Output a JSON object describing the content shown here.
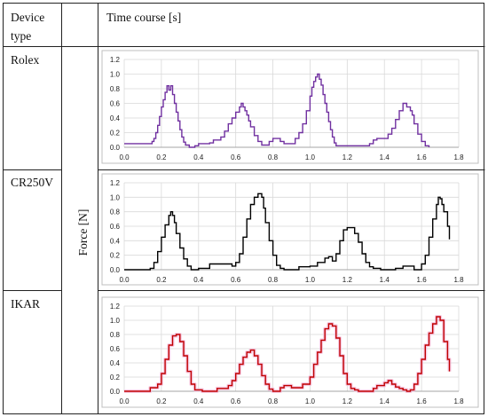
{
  "table": {
    "header_device": "Device type",
    "header_time": "Time course [s]",
    "y_axis_label": "Force [N]"
  },
  "chart_data": [
    {
      "type": "line",
      "device": "Rolex",
      "color": "#7030a0",
      "xlim": [
        0.0,
        1.8
      ],
      "ylim": [
        0.0,
        1.2
      ],
      "xticks": [
        "0.0",
        "0.2",
        "0.4",
        "0.6",
        "0.8",
        "1.0",
        "1.2",
        "1.4",
        "1.6",
        "1.8"
      ],
      "yticks": [
        "0.0",
        "0.2",
        "0.4",
        "0.6",
        "0.8",
        "1.0",
        "1.2"
      ],
      "grid": true,
      "x": [
        0.0,
        0.14,
        0.15,
        0.16,
        0.17,
        0.18,
        0.19,
        0.2,
        0.21,
        0.22,
        0.23,
        0.24,
        0.25,
        0.26,
        0.27,
        0.28,
        0.29,
        0.3,
        0.31,
        0.32,
        0.33,
        0.35,
        0.36,
        0.38,
        0.4,
        0.42,
        0.46,
        0.48,
        0.5,
        0.52,
        0.54,
        0.56,
        0.58,
        0.6,
        0.62,
        0.63,
        0.64,
        0.65,
        0.66,
        0.67,
        0.68,
        0.7,
        0.72,
        0.74,
        0.76,
        0.78,
        0.8,
        0.82,
        0.84,
        0.86,
        0.88,
        0.92,
        0.94,
        0.96,
        0.98,
        1.0,
        1.01,
        1.02,
        1.03,
        1.04,
        1.05,
        1.06,
        1.07,
        1.08,
        1.09,
        1.1,
        1.11,
        1.12,
        1.13,
        1.14,
        1.16,
        1.18,
        1.3,
        1.32,
        1.34,
        1.36,
        1.38,
        1.4,
        1.42,
        1.44,
        1.46,
        1.48,
        1.5,
        1.51,
        1.52,
        1.53,
        1.54,
        1.55,
        1.56,
        1.58,
        1.6,
        1.62,
        1.64
      ],
      "y": [
        0.05,
        0.05,
        0.08,
        0.12,
        0.2,
        0.3,
        0.42,
        0.55,
        0.65,
        0.75,
        0.84,
        0.78,
        0.84,
        0.72,
        0.6,
        0.48,
        0.36,
        0.24,
        0.14,
        0.07,
        0.03,
        0.0,
        0.0,
        0.02,
        0.05,
        0.05,
        0.06,
        0.1,
        0.1,
        0.14,
        0.22,
        0.32,
        0.4,
        0.48,
        0.55,
        0.6,
        0.55,
        0.5,
        0.44,
        0.36,
        0.28,
        0.16,
        0.08,
        0.03,
        0.03,
        0.08,
        0.12,
        0.12,
        0.08,
        0.05,
        0.05,
        0.12,
        0.2,
        0.32,
        0.5,
        0.7,
        0.82,
        0.9,
        0.96,
        1.0,
        0.93,
        0.85,
        0.72,
        0.6,
        0.48,
        0.35,
        0.24,
        0.14,
        0.06,
        0.02,
        0.02,
        0.02,
        0.02,
        0.05,
        0.1,
        0.12,
        0.12,
        0.12,
        0.18,
        0.26,
        0.38,
        0.5,
        0.6,
        0.6,
        0.55,
        0.55,
        0.5,
        0.44,
        0.32,
        0.18,
        0.08,
        0.02,
        0.0
      ]
    },
    {
      "type": "line",
      "device": "CR250V",
      "color": "#000000",
      "xlim": [
        0.0,
        1.8
      ],
      "ylim": [
        0.0,
        1.2
      ],
      "xticks": [
        "0.0",
        "0.2",
        "0.4",
        "0.6",
        "0.8",
        "1.0",
        "1.2",
        "1.4",
        "1.6",
        "1.8"
      ],
      "yticks": [
        "0.0",
        "0.2",
        "0.4",
        "0.6",
        "0.8",
        "1.0",
        "1.2"
      ],
      "grid": true,
      "x": [
        0.0,
        0.12,
        0.14,
        0.16,
        0.18,
        0.2,
        0.22,
        0.24,
        0.25,
        0.26,
        0.27,
        0.28,
        0.3,
        0.32,
        0.34,
        0.36,
        0.38,
        0.4,
        0.44,
        0.46,
        0.5,
        0.54,
        0.58,
        0.6,
        0.62,
        0.64,
        0.66,
        0.68,
        0.7,
        0.72,
        0.73,
        0.74,
        0.75,
        0.76,
        0.78,
        0.8,
        0.82,
        0.84,
        0.86,
        0.9,
        0.94,
        1.0,
        1.04,
        1.08,
        1.1,
        1.12,
        1.14,
        1.16,
        1.18,
        1.2,
        1.22,
        1.24,
        1.26,
        1.28,
        1.3,
        1.32,
        1.34,
        1.38,
        1.42,
        1.46,
        1.5,
        1.56,
        1.6,
        1.62,
        1.64,
        1.66,
        1.68,
        1.69,
        1.7,
        1.71,
        1.72,
        1.74,
        1.75
      ],
      "y": [
        0.0,
        0.0,
        0.02,
        0.1,
        0.25,
        0.45,
        0.62,
        0.75,
        0.8,
        0.75,
        0.65,
        0.5,
        0.3,
        0.15,
        0.05,
        0.0,
        0.0,
        0.02,
        0.02,
        0.08,
        0.08,
        0.08,
        0.05,
        0.1,
        0.22,
        0.45,
        0.7,
        0.9,
        1.0,
        1.05,
        1.05,
        1.0,
        0.85,
        0.65,
        0.4,
        0.2,
        0.06,
        0.02,
        0.0,
        0.0,
        0.04,
        0.05,
        0.1,
        0.16,
        0.18,
        0.12,
        0.22,
        0.4,
        0.55,
        0.58,
        0.58,
        0.5,
        0.38,
        0.22,
        0.1,
        0.04,
        0.02,
        0.0,
        0.0,
        0.02,
        0.05,
        0.0,
        0.08,
        0.2,
        0.45,
        0.7,
        0.9,
        1.0,
        0.98,
        0.9,
        0.8,
        0.6,
        0.42
      ]
    },
    {
      "type": "line",
      "device": "IKAR",
      "color": "#c00000",
      "xlim": [
        0.0,
        1.8
      ],
      "ylim": [
        0.0,
        1.2
      ],
      "xticks": [
        "0.0",
        "0.2",
        "0.4",
        "0.6",
        "0.8",
        "1.0",
        "1.2",
        "1.4",
        "1.6",
        "1.8"
      ],
      "yticks": [
        "0.0",
        "0.2",
        "0.4",
        "0.6",
        "0.8",
        "1.0",
        "1.2"
      ],
      "grid": true,
      "x": [
        0.0,
        0.12,
        0.14,
        0.16,
        0.18,
        0.2,
        0.22,
        0.24,
        0.26,
        0.28,
        0.3,
        0.32,
        0.34,
        0.36,
        0.38,
        0.42,
        0.46,
        0.5,
        0.54,
        0.56,
        0.58,
        0.6,
        0.62,
        0.64,
        0.66,
        0.68,
        0.7,
        0.72,
        0.74,
        0.76,
        0.78,
        0.8,
        0.84,
        0.86,
        0.88,
        0.9,
        0.92,
        0.96,
        1.0,
        1.02,
        1.04,
        1.06,
        1.08,
        1.1,
        1.12,
        1.14,
        1.16,
        1.18,
        1.2,
        1.22,
        1.24,
        1.26,
        1.3,
        1.34,
        1.36,
        1.38,
        1.4,
        1.42,
        1.44,
        1.46,
        1.48,
        1.5,
        1.52,
        1.54,
        1.56,
        1.58,
        1.6,
        1.62,
        1.64,
        1.66,
        1.68,
        1.7,
        1.72,
        1.74,
        1.75
      ],
      "y": [
        0.0,
        0.0,
        0.05,
        0.05,
        0.1,
        0.25,
        0.45,
        0.65,
        0.78,
        0.8,
        0.7,
        0.5,
        0.28,
        0.1,
        0.02,
        0.0,
        0.0,
        0.04,
        0.04,
        0.08,
        0.15,
        0.25,
        0.38,
        0.48,
        0.55,
        0.58,
        0.5,
        0.38,
        0.22,
        0.1,
        0.03,
        0.0,
        0.05,
        0.08,
        0.08,
        0.05,
        0.05,
        0.1,
        0.2,
        0.38,
        0.55,
        0.72,
        0.88,
        0.95,
        0.92,
        0.75,
        0.5,
        0.25,
        0.1,
        0.04,
        0.02,
        0.0,
        0.0,
        0.04,
        0.08,
        0.08,
        0.12,
        0.15,
        0.1,
        0.06,
        0.04,
        0.02,
        0.0,
        0.02,
        0.1,
        0.25,
        0.45,
        0.65,
        0.82,
        0.95,
        1.05,
        1.0,
        0.7,
        0.45,
        0.28
      ]
    }
  ]
}
